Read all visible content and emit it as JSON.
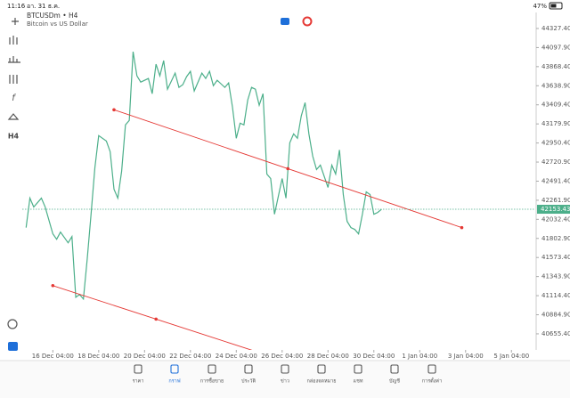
{
  "status_bar": {
    "time": "11:16",
    "date": "อา. 31 ธ.ค.",
    "battery": "47%"
  },
  "toolbar": {
    "timeframe": "H4"
  },
  "chart_data": {
    "type": "line",
    "title": "BTCUSDm • H4",
    "subtitle": "Bitcoin vs US Dollar",
    "x": [
      -7,
      -6,
      -5,
      -3,
      -2,
      0,
      1,
      2,
      4,
      5,
      6,
      7,
      8,
      9,
      10,
      11,
      12,
      14,
      15,
      16,
      17,
      18,
      19,
      20,
      21,
      22,
      23,
      25,
      26,
      27,
      28,
      29,
      30,
      32,
      33,
      34,
      35,
      36,
      37,
      39,
      40,
      41,
      42,
      43,
      45,
      46,
      47,
      48,
      49,
      50,
      51,
      52,
      53,
      54,
      55,
      56,
      57,
      58,
      59,
      60,
      61,
      62,
      63,
      64,
      65,
      66,
      67,
      68,
      69,
      70,
      72,
      73,
      74,
      75,
      76,
      77,
      78,
      79,
      80,
      81,
      82,
      83,
      84,
      85,
      86
    ],
    "series": [
      {
        "color": "#4caf8a",
        "values": [
          41933,
          42287,
          42180,
          42287,
          42180,
          41858,
          41793,
          41879,
          41750,
          41825,
          41095,
          41128,
          41074,
          41557,
          42094,
          42652,
          43039,
          42974,
          42846,
          42395,
          42287,
          42610,
          43168,
          43221,
          44048,
          43758,
          43683,
          43726,
          43543,
          43898,
          43758,
          43941,
          43597,
          43791,
          43619,
          43651,
          43748,
          43812,
          43576,
          43791,
          43726,
          43812,
          43640,
          43705,
          43619,
          43673,
          43383,
          43007,
          43189,
          43168,
          43468,
          43619,
          43597,
          43404,
          43543,
          42577,
          42523,
          42094,
          42309,
          42523,
          42287,
          42953,
          43060,
          43007,
          43275,
          43436,
          43060,
          42792,
          42631,
          42684,
          42416,
          42684,
          42577,
          42867,
          42330,
          42008,
          41933,
          41911,
          41858,
          42094,
          42362,
          42330,
          42094,
          42115,
          42153
        ]
      }
    ],
    "trendlines": [
      {
        "color": "#e53935",
        "x": [
          16,
          107
        ],
        "y": [
          43350,
          41933
        ]
      },
      {
        "color": "#e53935",
        "x": [
          0,
          54
        ],
        "y": [
          41235,
          40430
        ]
      }
    ],
    "current_price": 42153.43,
    "xlim": [
      -8,
      126
    ],
    "ylim": [
      40462,
      44520
    ],
    "xticks": [
      {
        "value": 0,
        "label": "16 Dec 04:00"
      },
      {
        "value": 12,
        "label": "18 Dec 04:00"
      },
      {
        "value": 24,
        "label": "20 Dec 04:00"
      },
      {
        "value": 36,
        "label": "22 Dec 04:00"
      },
      {
        "value": 48,
        "label": "24 Dec 04:00"
      },
      {
        "value": 60,
        "label": "26 Dec 04:00"
      },
      {
        "value": 72,
        "label": "28 Dec 04:00"
      },
      {
        "value": 84,
        "label": "30 Dec 04:00"
      },
      {
        "value": 96,
        "label": "1 Jan 04:00"
      },
      {
        "value": 108,
        "label": "3 Jan 04:00"
      },
      {
        "value": 120,
        "label": "5 Jan 04:00"
      }
    ],
    "yticks": [
      {
        "value": 44327.4,
        "label": "44327.40"
      },
      {
        "value": 44097.9,
        "label": "44097.90"
      },
      {
        "value": 43868.4,
        "label": "43868.40"
      },
      {
        "value": 43638.9,
        "label": "43638.90"
      },
      {
        "value": 43409.4,
        "label": "43409.40"
      },
      {
        "value": 43179.9,
        "label": "43179.90"
      },
      {
        "value": 42950.4,
        "label": "42950.40"
      },
      {
        "value": 42720.9,
        "label": "42720.90"
      },
      {
        "value": 42491.4,
        "label": "42491.40"
      },
      {
        "value": 42261.9,
        "label": "42261.90"
      },
      {
        "value": 42032.4,
        "label": "42032.40"
      },
      {
        "value": 41802.9,
        "label": "41802.90"
      },
      {
        "value": 41573.4,
        "label": "41573.40"
      },
      {
        "value": 41343.9,
        "label": "41343.90"
      },
      {
        "value": 41114.4,
        "label": "41114.40"
      },
      {
        "value": 40884.9,
        "label": "40884.90"
      },
      {
        "value": 40655.4,
        "label": "40655.40"
      }
    ]
  },
  "nav": {
    "items": [
      "ราคา",
      "กราฟ",
      "การซื้อขาย",
      "ประวัติ",
      "ข่าว",
      "กล่องจดหมาย",
      "แชท",
      "บัญชี",
      "การตั้งค่า"
    ]
  }
}
